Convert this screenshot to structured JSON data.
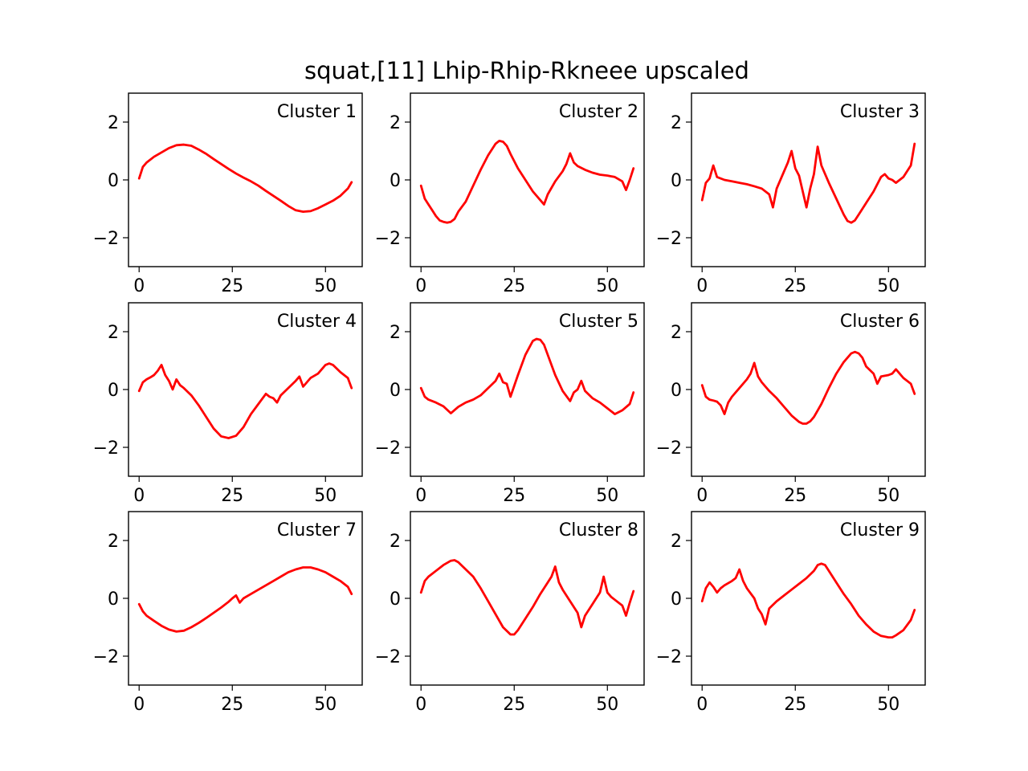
{
  "figure": {
    "title": "squat,[11] Lhip-Rhip-Rkneee upscaled"
  },
  "chart_data": [
    {
      "type": "line",
      "title": "Cluster 1",
      "xlim": [
        -2.85,
        59.85
      ],
      "ylim": [
        -3,
        3
      ],
      "xticks": [
        0,
        25,
        50
      ],
      "yticks": [
        -2,
        0,
        2
      ],
      "grid": false,
      "color": "#ff0000",
      "x": [
        0,
        1,
        2,
        4,
        6,
        8,
        10,
        12,
        14,
        16,
        18,
        20,
        22,
        24,
        26,
        28,
        30,
        32,
        34,
        36,
        38,
        40,
        42,
        44,
        46,
        48,
        50,
        52,
        54,
        56,
        57
      ],
      "y": [
        0.05,
        0.45,
        0.6,
        0.8,
        0.95,
        1.1,
        1.2,
        1.22,
        1.18,
        1.05,
        0.9,
        0.72,
        0.55,
        0.38,
        0.22,
        0.08,
        -0.05,
        -0.2,
        -0.38,
        -0.55,
        -0.72,
        -0.9,
        -1.05,
        -1.1,
        -1.08,
        -0.98,
        -0.85,
        -0.72,
        -0.55,
        -0.3,
        -0.08
      ]
    },
    {
      "type": "line",
      "title": "Cluster 2",
      "xlim": [
        -2.85,
        59.85
      ],
      "ylim": [
        -3,
        3
      ],
      "xticks": [
        0,
        25,
        50
      ],
      "yticks": [
        -2,
        0,
        2
      ],
      "grid": false,
      "color": "#ff0000",
      "x": [
        0,
        1,
        2,
        3,
        4,
        5,
        6,
        7,
        8,
        9,
        10,
        12,
        14,
        16,
        18,
        20,
        21,
        22,
        23,
        24,
        26,
        28,
        30,
        32,
        33,
        34,
        36,
        38,
        39,
        40,
        41,
        42,
        44,
        46,
        48,
        50,
        52,
        54,
        55,
        56,
        57
      ],
      "y": [
        -0.2,
        -0.65,
        -0.85,
        -1.05,
        -1.25,
        -1.4,
        -1.45,
        -1.48,
        -1.45,
        -1.35,
        -1.1,
        -0.75,
        -0.2,
        0.35,
        0.85,
        1.25,
        1.35,
        1.32,
        1.18,
        0.9,
        0.4,
        0.0,
        -0.4,
        -0.7,
        -0.85,
        -0.5,
        -0.05,
        0.3,
        0.55,
        0.92,
        0.6,
        0.48,
        0.35,
        0.25,
        0.18,
        0.15,
        0.1,
        -0.05,
        -0.35,
        0.0,
        0.4
      ]
    },
    {
      "type": "line",
      "title": "Cluster 3",
      "xlim": [
        -2.85,
        59.85
      ],
      "ylim": [
        -3,
        3
      ],
      "xticks": [
        0,
        25,
        50
      ],
      "yticks": [
        -2,
        0,
        2
      ],
      "grid": false,
      "color": "#ff0000",
      "x": [
        0,
        1,
        2,
        3,
        4,
        6,
        8,
        10,
        12,
        14,
        16,
        18,
        19,
        20,
        22,
        23,
        24,
        25,
        26,
        27,
        28,
        29,
        30,
        31,
        32,
        34,
        36,
        38,
        39,
        40,
        41,
        42,
        44,
        46,
        48,
        49,
        50,
        51,
        52,
        54,
        56,
        57
      ],
      "y": [
        -0.7,
        -0.1,
        0.05,
        0.5,
        0.1,
        0.0,
        -0.05,
        -0.1,
        -0.15,
        -0.22,
        -0.3,
        -0.5,
        -0.95,
        -0.3,
        0.3,
        0.6,
        1.0,
        0.4,
        0.15,
        -0.4,
        -0.95,
        -0.3,
        0.2,
        1.15,
        0.5,
        -0.1,
        -0.65,
        -1.2,
        -1.42,
        -1.48,
        -1.4,
        -1.2,
        -0.8,
        -0.4,
        0.1,
        0.2,
        0.05,
        0.0,
        -0.1,
        0.1,
        0.5,
        1.25
      ]
    },
    {
      "type": "line",
      "title": "Cluster 4",
      "xlim": [
        -2.85,
        59.85
      ],
      "ylim": [
        -3,
        3
      ],
      "xticks": [
        0,
        25,
        50
      ],
      "yticks": [
        -2,
        0,
        2
      ],
      "grid": false,
      "color": "#ff0000",
      "x": [
        0,
        1,
        2,
        3,
        4,
        5,
        6,
        7,
        8,
        9,
        10,
        11,
        12,
        14,
        16,
        18,
        20,
        22,
        24,
        26,
        28,
        30,
        32,
        34,
        35,
        36,
        37,
        38,
        40,
        42,
        43,
        44,
        45,
        46,
        48,
        50,
        51,
        52,
        54,
        56,
        57
      ],
      "y": [
        -0.05,
        0.25,
        0.35,
        0.42,
        0.5,
        0.65,
        0.85,
        0.5,
        0.3,
        0.0,
        0.35,
        0.15,
        0.05,
        -0.2,
        -0.55,
        -0.95,
        -1.35,
        -1.62,
        -1.68,
        -1.6,
        -1.3,
        -0.85,
        -0.5,
        -0.15,
        -0.25,
        -0.3,
        -0.45,
        -0.2,
        0.05,
        0.3,
        0.45,
        0.1,
        0.25,
        0.4,
        0.55,
        0.85,
        0.9,
        0.85,
        0.6,
        0.4,
        0.05
      ]
    },
    {
      "type": "line",
      "title": "Cluster 5",
      "xlim": [
        -2.85,
        59.85
      ],
      "ylim": [
        -3,
        3
      ],
      "xticks": [
        0,
        25,
        50
      ],
      "yticks": [
        -2,
        0,
        2
      ],
      "grid": false,
      "color": "#ff0000",
      "x": [
        0,
        1,
        2,
        4,
        6,
        8,
        10,
        12,
        14,
        16,
        18,
        20,
        21,
        22,
        23,
        24,
        26,
        28,
        30,
        31,
        32,
        33,
        34,
        36,
        38,
        40,
        41,
        42,
        43,
        44,
        46,
        48,
        50,
        52,
        54,
        56,
        57
      ],
      "y": [
        0.05,
        -0.25,
        -0.35,
        -0.45,
        -0.58,
        -0.82,
        -0.6,
        -0.45,
        -0.35,
        -0.2,
        0.05,
        0.3,
        0.55,
        0.25,
        0.2,
        -0.25,
        0.5,
        1.2,
        1.68,
        1.75,
        1.72,
        1.55,
        1.2,
        0.5,
        -0.05,
        -0.4,
        -0.1,
        0.0,
        0.3,
        -0.05,
        -0.3,
        -0.45,
        -0.65,
        -0.85,
        -0.72,
        -0.5,
        -0.1
      ]
    },
    {
      "type": "line",
      "title": "Cluster 6",
      "xlim": [
        -2.85,
        59.85
      ],
      "ylim": [
        -3,
        3
      ],
      "xticks": [
        0,
        25,
        50
      ],
      "yticks": [
        -2,
        0,
        2
      ],
      "grid": false,
      "color": "#ff0000",
      "x": [
        0,
        1,
        2,
        3,
        4,
        5,
        6,
        7,
        8,
        10,
        12,
        13,
        14,
        15,
        16,
        18,
        20,
        22,
        24,
        26,
        27,
        28,
        29,
        30,
        32,
        34,
        36,
        38,
        40,
        41,
        42,
        43,
        44,
        46,
        47,
        48,
        50,
        51,
        52,
        54,
        56,
        57
      ],
      "y": [
        0.15,
        -0.25,
        -0.35,
        -0.38,
        -0.42,
        -0.55,
        -0.85,
        -0.45,
        -0.25,
        0.05,
        0.35,
        0.55,
        0.92,
        0.45,
        0.25,
        -0.05,
        -0.3,
        -0.6,
        -0.9,
        -1.12,
        -1.18,
        -1.18,
        -1.1,
        -0.95,
        -0.5,
        0.05,
        0.55,
        0.95,
        1.25,
        1.3,
        1.25,
        1.1,
        0.8,
        0.55,
        0.2,
        0.45,
        0.5,
        0.55,
        0.7,
        0.4,
        0.2,
        -0.15
      ]
    },
    {
      "type": "line",
      "title": "Cluster 7",
      "xlim": [
        -2.85,
        59.85
      ],
      "ylim": [
        -3,
        3
      ],
      "xticks": [
        0,
        25,
        50
      ],
      "yticks": [
        -2,
        0,
        2
      ],
      "grid": false,
      "color": "#ff0000",
      "x": [
        0,
        1,
        2,
        4,
        6,
        8,
        10,
        12,
        14,
        16,
        18,
        20,
        22,
        24,
        25,
        26,
        27,
        28,
        30,
        32,
        34,
        36,
        38,
        40,
        42,
        44,
        46,
        48,
        50,
        52,
        54,
        56,
        57
      ],
      "y": [
        -0.2,
        -0.45,
        -0.6,
        -0.78,
        -0.95,
        -1.08,
        -1.15,
        -1.12,
        -1.0,
        -0.85,
        -0.68,
        -0.5,
        -0.32,
        -0.12,
        0.0,
        0.1,
        -0.15,
        0.0,
        0.15,
        0.3,
        0.45,
        0.6,
        0.75,
        0.9,
        1.0,
        1.07,
        1.07,
        1.0,
        0.9,
        0.75,
        0.6,
        0.4,
        0.15
      ]
    },
    {
      "type": "line",
      "title": "Cluster 8",
      "xlim": [
        -2.85,
        59.85
      ],
      "ylim": [
        -3,
        3
      ],
      "xticks": [
        0,
        25,
        50
      ],
      "yticks": [
        -2,
        0,
        2
      ],
      "grid": false,
      "color": "#ff0000",
      "x": [
        0,
        1,
        2,
        4,
        6,
        8,
        9,
        10,
        12,
        14,
        16,
        18,
        20,
        22,
        24,
        25,
        26,
        28,
        30,
        32,
        34,
        35,
        36,
        37,
        38,
        40,
        42,
        43,
        44,
        46,
        48,
        49,
        50,
        51,
        52,
        54,
        55,
        56,
        57
      ],
      "y": [
        0.2,
        0.6,
        0.75,
        0.95,
        1.15,
        1.3,
        1.32,
        1.25,
        1.0,
        0.75,
        0.35,
        -0.1,
        -0.55,
        -1.0,
        -1.25,
        -1.25,
        -1.1,
        -0.7,
        -0.3,
        0.15,
        0.55,
        0.75,
        1.1,
        0.55,
        0.3,
        -0.1,
        -0.5,
        -1.0,
        -0.6,
        -0.2,
        0.2,
        0.75,
        0.2,
        0.05,
        -0.05,
        -0.25,
        -0.6,
        -0.15,
        0.25
      ]
    },
    {
      "type": "line",
      "title": "Cluster 9",
      "xlim": [
        -2.85,
        59.85
      ],
      "ylim": [
        -3,
        3
      ],
      "xticks": [
        0,
        25,
        50
      ],
      "yticks": [
        -2,
        0,
        2
      ],
      "grid": false,
      "color": "#ff0000",
      "x": [
        0,
        1,
        2,
        3,
        4,
        5,
        6,
        8,
        9,
        10,
        11,
        12,
        14,
        15,
        16,
        17,
        18,
        20,
        22,
        24,
        26,
        28,
        30,
        31,
        32,
        33,
        34,
        36,
        38,
        40,
        42,
        44,
        46,
        48,
        50,
        51,
        52,
        54,
        56,
        57
      ],
      "y": [
        -0.1,
        0.35,
        0.55,
        0.4,
        0.2,
        0.35,
        0.45,
        0.6,
        0.7,
        1.0,
        0.6,
        0.35,
        0.0,
        -0.35,
        -0.55,
        -0.9,
        -0.35,
        -0.1,
        0.1,
        0.3,
        0.5,
        0.7,
        0.95,
        1.15,
        1.2,
        1.15,
        0.95,
        0.55,
        0.15,
        -0.2,
        -0.6,
        -0.9,
        -1.15,
        -1.3,
        -1.35,
        -1.35,
        -1.28,
        -1.1,
        -0.75,
        -0.4
      ]
    }
  ]
}
